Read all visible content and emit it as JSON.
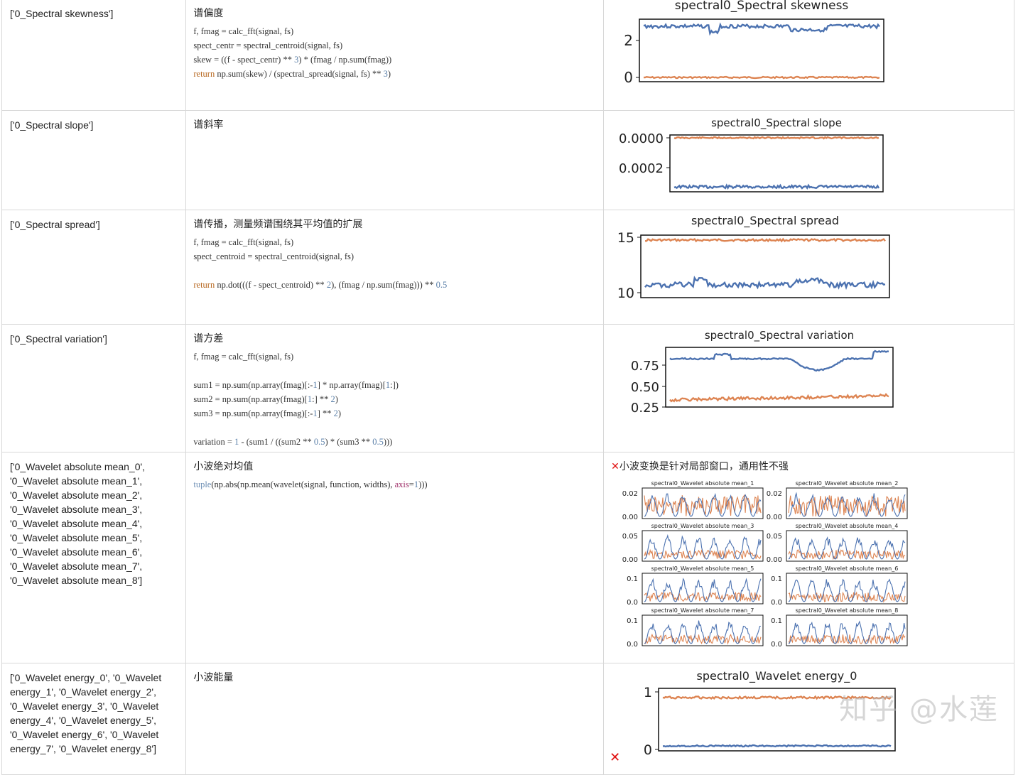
{
  "rows": [
    {
      "feature": "['0_Spectral skewness']",
      "desc": "谱偏度",
      "code": [
        "f, fmag = calc_fft(signal, fs)",
        "spect_centr = spectral_centroid(signal, fs)",
        "skew = ((f - spect_centr) ** 3) * (fmag / np.sum(fmag))",
        "return np.sum(skew) / (spectral_spread(signal, fs) ** 3)"
      ],
      "chart": {
        "title": "spectral0_Spectral skewness",
        "yticks": [
          "2",
          "0"
        ]
      }
    },
    {
      "feature": "['0_Spectral slope']",
      "desc": "谱斜率",
      "code": [],
      "chart": {
        "title": "spectral0_Spectral slope",
        "yticks": [
          "0.0000",
          "0.0002"
        ]
      }
    },
    {
      "feature": "['0_Spectral spread']",
      "desc": "谱传播，测量频谱围绕其平均值的扩展",
      "code": [
        "f, fmag = calc_fft(signal, fs)",
        "spect_centroid = spectral_centroid(signal, fs)",
        "",
        "return np.dot(((f - spect_centroid) ** 2), (fmag / np.sum(fmag))) ** 0.5"
      ],
      "chart": {
        "title": "spectral0_Spectral spread",
        "yticks": [
          "15",
          "10"
        ]
      }
    },
    {
      "feature": "['0_Spectral variation']",
      "desc": "谱方差",
      "code": [
        "f, fmag = calc_fft(signal, fs)",
        "",
        "sum1 = np.sum(np.array(fmag)[:-1] * np.array(fmag)[1:])",
        "sum2 = np.sum(np.array(fmag)[1:] ** 2)",
        "sum3 = np.sum(np.array(fmag)[:-1] ** 2)",
        "",
        "variation = 1 - (sum1 / ((sum2 ** 0.5) * (sum3 ** 0.5)))"
      ],
      "chart": {
        "title": "spectral0_Spectral variation",
        "yticks": [
          "0.75",
          "0.50",
          "0.25"
        ]
      }
    },
    {
      "feature": "['0_Wavelet absolute mean_0',\n'0_Wavelet absolute mean_1',\n'0_Wavelet absolute mean_2',\n'0_Wavelet absolute mean_3',\n'0_Wavelet absolute mean_4',\n'0_Wavelet absolute mean_5',\n'0_Wavelet absolute mean_6',\n'0_Wavelet absolute mean_7',\n'0_Wavelet absolute mean_8']",
      "desc": "小波绝对均值",
      "code": [
        "tuple(np.abs(np.mean(wavelet(signal, function, widths), axis=1)))"
      ],
      "note_mark": "✕",
      "note": "小波变换是针对局部窗口，通用性不强",
      "mini_charts": [
        {
          "title": "spectral0_Wavelet absolute mean_1",
          "yticks": [
            "0.02",
            "0.00"
          ]
        },
        {
          "title": "spectral0_Wavelet absolute mean_2",
          "yticks": [
            "0.02",
            "0.00"
          ]
        },
        {
          "title": "spectral0_Wavelet absolute mean_3",
          "yticks": [
            "0.05",
            "0.00"
          ]
        },
        {
          "title": "spectral0_Wavelet absolute mean_4",
          "yticks": [
            "0.05",
            "0.00"
          ]
        },
        {
          "title": "spectral0_Wavelet absolute mean_5",
          "yticks": [
            "0.1",
            "0.0"
          ]
        },
        {
          "title": "spectral0_Wavelet absolute mean_6",
          "yticks": [
            "0.1",
            "0.0"
          ]
        },
        {
          "title": "spectral0_Wavelet absolute mean_7",
          "yticks": [
            "0.1",
            "0.0"
          ]
        },
        {
          "title": "spectral0_Wavelet absolute mean_8",
          "yticks": [
            "0.1",
            "0.0"
          ]
        }
      ]
    },
    {
      "feature": "['0_Wavelet energy_0', '0_Wavelet\nenergy_1', '0_Wavelet energy_2',\n'0_Wavelet energy_3', '0_Wavelet\nenergy_4', '0_Wavelet energy_5',\n'0_Wavelet energy_6', '0_Wavelet\nenergy_7', '0_Wavelet energy_8']",
      "desc": "小波能量",
      "code": [],
      "note_mark": "✕",
      "chart": {
        "title": "spectral0_Wavelet energy_0",
        "yticks": [
          "1",
          "0"
        ]
      }
    }
  ],
  "watermark_logo": "知乎 @水莲",
  "colors": {
    "series1": "#4c72b0",
    "series2": "#dd8452",
    "mark": "#e01010"
  }
}
